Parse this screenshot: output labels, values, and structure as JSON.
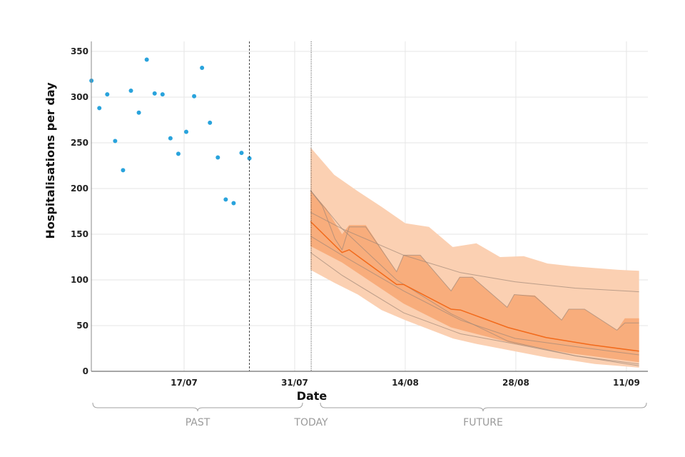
{
  "chart_data": {
    "type": "line",
    "title": "",
    "xlabel": "Date",
    "ylabel": "Hospitalisations per day",
    "ylim": [
      0,
      350
    ],
    "yticks": [
      0,
      50,
      100,
      150,
      200,
      250,
      300,
      350
    ],
    "xticks": [
      "17/07",
      "31/07",
      "14/08",
      "28/08",
      "11/09"
    ],
    "grid": true,
    "segments": {
      "past": "PAST",
      "today": "TODAY",
      "future": "FUTURE"
    },
    "colors": {
      "observed": "#29a3dc",
      "outer_band": "#fbd0b2",
      "inner_band": "#f8ad7c",
      "median": "#f26a1b",
      "trajectory": "#a08878"
    },
    "observed": {
      "name": "Observed",
      "dates": [
        "05/07",
        "06/07",
        "07/07",
        "08/07",
        "09/07",
        "10/07",
        "11/07",
        "12/07",
        "13/07",
        "14/07",
        "15/07",
        "16/07",
        "17/07",
        "18/07",
        "19/07",
        "20/07",
        "21/07",
        "22/07",
        "23/07",
        "24/07",
        "25/07"
      ],
      "values": [
        318,
        288,
        303,
        252,
        220,
        307,
        283,
        341,
        304,
        303,
        255,
        238,
        262,
        301,
        332,
        272,
        234,
        188,
        184,
        239,
        233
      ]
    },
    "last_data_date": "25/07",
    "forecast_start": "02/08",
    "forecast": {
      "x_unit": "days since 02/08",
      "outer_upper": {
        "x": [
          0,
          3,
          6,
          9,
          12,
          15,
          18,
          21,
          24,
          27,
          30,
          33,
          36,
          39,
          41.6
        ],
        "y": [
          245,
          215,
          197,
          180,
          162,
          158,
          136,
          140,
          125,
          126,
          118,
          115,
          113,
          111,
          110
        ]
      },
      "outer_lower": {
        "x": [
          0,
          3,
          6,
          9,
          12,
          15,
          18,
          21,
          24,
          27,
          30,
          33,
          36,
          39,
          41.6
        ],
        "y": [
          111,
          97,
          84,
          67,
          56,
          46,
          36,
          30,
          25,
          20,
          15,
          12,
          8,
          6,
          4
        ]
      },
      "inner_upper": {
        "x": [
          0,
          2,
          4,
          4.9,
          7,
          10.9,
          11.8,
          13.9,
          17.8,
          18.9,
          20.5,
          24.9,
          25.8,
          28.4,
          31.8,
          32.7,
          34.7,
          38.8,
          39.8,
          41.6
        ],
        "y": [
          198,
          178,
          150,
          160,
          160,
          109,
          127,
          127,
          88,
          103,
          103,
          70,
          84,
          83,
          56,
          68,
          68,
          45,
          58,
          58
        ]
      },
      "inner_lower": {
        "x": [
          0,
          4,
          11.8,
          17.8,
          25.9,
          32.6,
          41.6
        ],
        "y": [
          137,
          119,
          74,
          48,
          30,
          20,
          10
        ]
      },
      "median": {
        "x": [
          0,
          4,
          4.9,
          10.9,
          11.8,
          17.8,
          19,
          25,
          29.8,
          35.5,
          41.6
        ],
        "y": [
          164,
          130,
          133,
          95,
          95,
          68,
          67,
          48,
          37,
          29,
          22
        ]
      },
      "trajectories": [
        {
          "x": [
            0,
            4,
            11.8,
            19,
            25.9,
            33.5,
            41.6
          ],
          "y": [
            174,
            156,
            127,
            108,
            98,
            91,
            87
          ]
        },
        {
          "x": [
            0,
            1.5,
            3.1,
            4,
            4.9,
            7,
            10.9,
            11.8,
            13.9,
            17.8,
            18.9,
            20.5,
            24.9,
            25.8,
            28.4,
            31.8,
            32.7,
            34.7,
            38.8,
            39.8,
            41.6
          ],
          "y": [
            198,
            181,
            145,
            133,
            158,
            158,
            109,
            127,
            127,
            88,
            103,
            103,
            70,
            84,
            82,
            56,
            68,
            68,
            45,
            53,
            53
          ]
        },
        {
          "x": [
            0,
            4,
            10.9,
            17.8,
            25,
            33.5,
            41.6
          ],
          "y": [
            198,
            156,
            100,
            63,
            33,
            17,
            8
          ]
        },
        {
          "x": [
            0,
            4,
            11.8,
            19,
            25.9,
            33.5,
            41.6
          ],
          "y": [
            148,
            127,
            88,
            56,
            36,
            27,
            18
          ]
        },
        {
          "x": [
            0,
            4,
            11.8,
            19,
            25.9,
            33.5,
            41.6
          ],
          "y": [
            130,
            105,
            64,
            41,
            30,
            17,
            6
          ]
        }
      ]
    }
  }
}
